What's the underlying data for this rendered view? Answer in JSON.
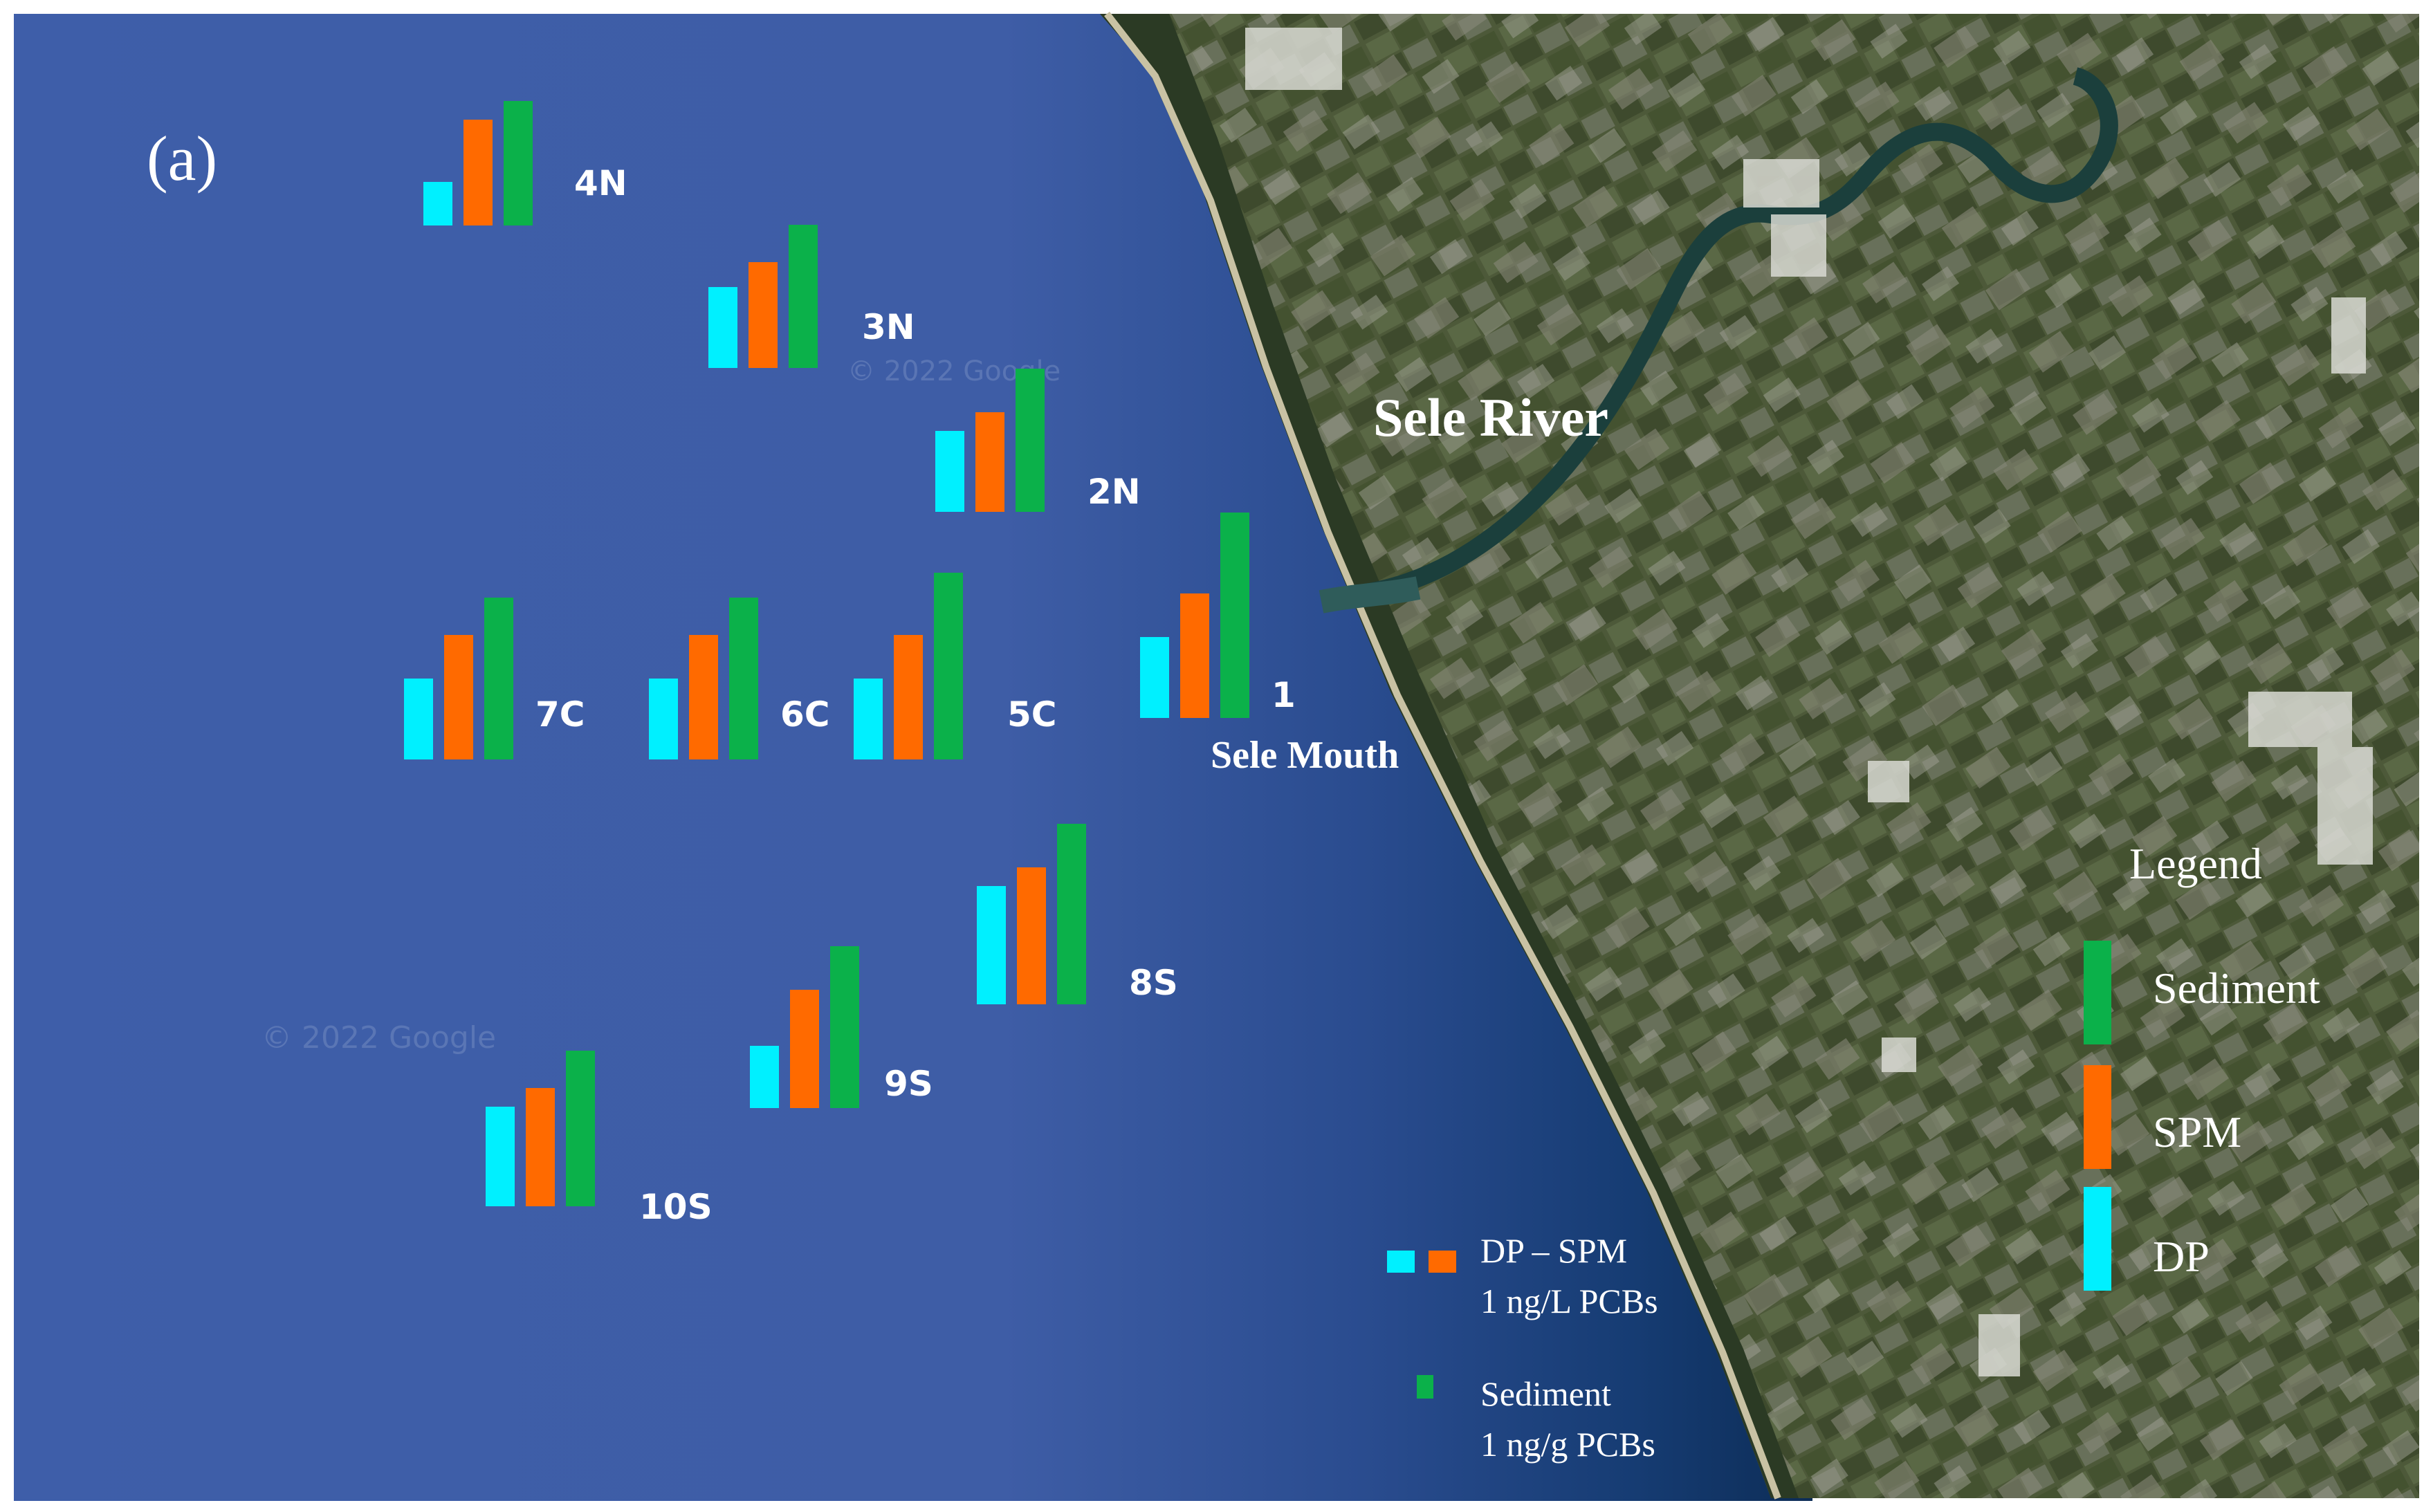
{
  "panel_label": "(a)",
  "place_labels": {
    "river": "Sele River",
    "mouth": "Sele Mouth"
  },
  "watermark": "© 2022 Google",
  "colors": {
    "DP": "#00F0FF",
    "SPM": "#FF6A00",
    "Sediment": "#0BB14A",
    "sea": "#3D5DA8",
    "sea_near_shore": "#0E2F5E",
    "land": "#4E5A3C"
  },
  "chart_data": {
    "type": "bar",
    "series_order": [
      "DP",
      "SPM",
      "Sediment"
    ],
    "stations": [
      {
        "label": "4N",
        "DP": 0.35,
        "SPM": 0.85,
        "Sediment": 1.0
      },
      {
        "label": "3N",
        "DP": 0.65,
        "SPM": 0.85,
        "Sediment": 1.15
      },
      {
        "label": "2N",
        "DP": 0.65,
        "SPM": 0.8,
        "Sediment": 1.15
      },
      {
        "label": "1",
        "DP": 0.65,
        "SPM": 1.0,
        "Sediment": 1.65
      },
      {
        "label": "5C",
        "DP": 0.65,
        "SPM": 1.0,
        "Sediment": 1.5
      },
      {
        "label": "6C",
        "DP": 0.65,
        "SPM": 1.0,
        "Sediment": 1.3
      },
      {
        "label": "7C",
        "DP": 0.65,
        "SPM": 1.0,
        "Sediment": 1.3
      },
      {
        "label": "8S",
        "DP": 0.95,
        "SPM": 1.1,
        "Sediment": 1.45
      },
      {
        "label": "9S",
        "DP": 0.5,
        "SPM": 0.95,
        "Sediment": 1.3
      },
      {
        "label": "10S",
        "DP": 0.8,
        "SPM": 0.95,
        "Sediment": 1.25
      }
    ]
  },
  "legend": {
    "title": "Legend",
    "items": [
      {
        "name": "Sediment",
        "label": "Sediment"
      },
      {
        "name": "SPM",
        "label": "SPM"
      },
      {
        "name": "DP",
        "label": "DP"
      }
    ]
  },
  "scale_legend": {
    "water_label_line1": "DP – SPM",
    "water_label_line2": "1  ng/L PCBs",
    "sediment_label_line1": "Sediment",
    "sediment_label_line2": "1 ng/g PCBs"
  }
}
